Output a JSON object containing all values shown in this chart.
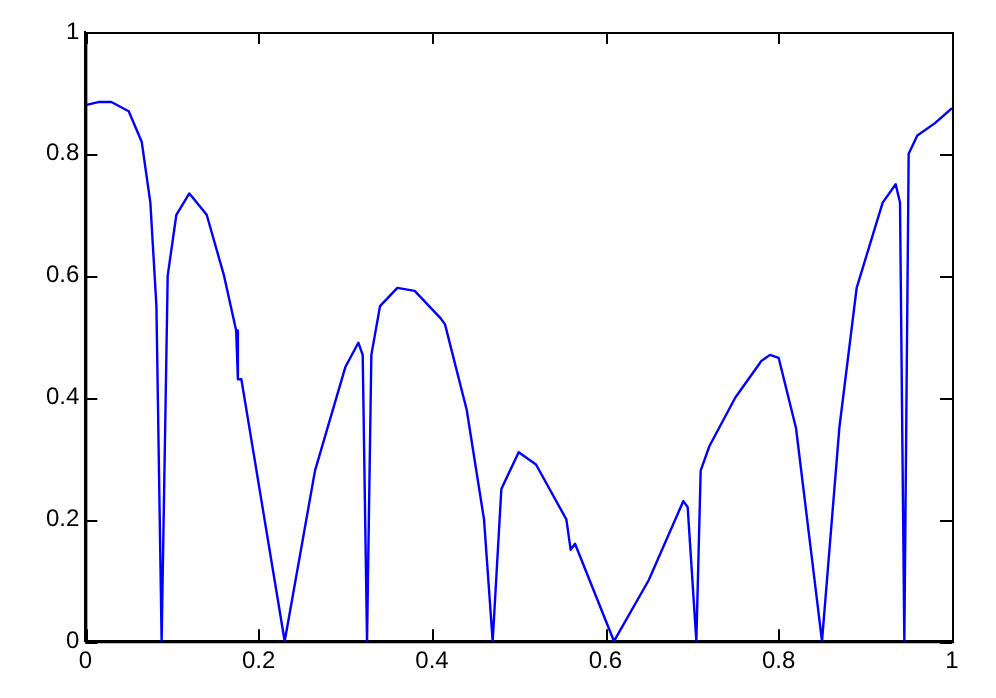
{
  "chart_data": {
    "type": "line",
    "xlim": [
      0,
      1
    ],
    "ylim": [
      0,
      1
    ],
    "xticks": [
      0,
      0.2,
      0.4,
      0.6,
      0.8,
      1
    ],
    "yticks": [
      0,
      0.2,
      0.4,
      0.6,
      0.8,
      1
    ],
    "grid": false,
    "legend": false,
    "marker": "none",
    "line_style": "solid",
    "series": [
      {
        "color": "#0000ff",
        "x": [
          0,
          0.015,
          0.03,
          0.05,
          0.065,
          0.075,
          0.082,
          0.088,
          0.095,
          0.105,
          0.12,
          0.14,
          0.16,
          0.174,
          0.176,
          0.18,
          0.23,
          0.265,
          0.3,
          0.315,
          0.32,
          0.325,
          0.33,
          0.34,
          0.36,
          0.38,
          0.41,
          0.415,
          0.44,
          0.46,
          0.47,
          0.48,
          0.5,
          0.52,
          0.555,
          0.56,
          0.565,
          0.61,
          0.65,
          0.69,
          0.695,
          0.705,
          0.71,
          0.72,
          0.75,
          0.78,
          0.79,
          0.8,
          0.82,
          0.85,
          0.87,
          0.89,
          0.92,
          0.935,
          0.94,
          0.945,
          0.95,
          0.96,
          0.98,
          1
        ],
        "values": [
          0.88,
          0.885,
          0.885,
          0.87,
          0.82,
          0.72,
          0.55,
          0,
          0.6,
          0.7,
          0.735,
          0.7,
          0.6,
          0.51,
          0.43,
          0.43,
          0,
          0.28,
          0.45,
          0.49,
          0.47,
          0,
          0.47,
          0.55,
          0.58,
          0.575,
          0.53,
          0.52,
          0.38,
          0.2,
          0,
          0.25,
          0.31,
          0.29,
          0.2,
          0.15,
          0.16,
          0,
          0.1,
          0.23,
          0.22,
          0,
          0.28,
          0.32,
          0.4,
          0.46,
          0.47,
          0.465,
          0.35,
          0,
          0.35,
          0.58,
          0.72,
          0.75,
          0.72,
          0,
          0.8,
          0.83,
          0.85,
          0.875
        ]
      }
    ]
  }
}
